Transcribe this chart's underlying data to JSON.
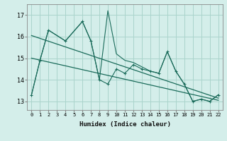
{
  "bg_color": "#d4eeea",
  "grid_color": "#aad4cc",
  "line_color": "#1a6b5a",
  "xlabel": "Humidex (Indice chaleur)",
  "xlim": [
    -0.5,
    22.5
  ],
  "ylim": [
    12.6,
    17.5
  ],
  "yticks": [
    13,
    14,
    15,
    16,
    17
  ],
  "xticks": [
    0,
    1,
    2,
    3,
    4,
    5,
    6,
    7,
    8,
    9,
    10,
    11,
    12,
    13,
    14,
    15,
    16,
    17,
    18,
    19,
    20,
    21,
    22
  ],
  "series1_x": [
    0,
    1,
    2,
    4,
    6,
    7,
    8,
    9,
    10,
    11,
    12,
    13,
    14,
    15,
    16,
    17,
    18,
    19,
    20,
    21,
    22
  ],
  "series1_y": [
    13.3,
    14.9,
    16.3,
    15.8,
    16.7,
    15.8,
    14.0,
    13.8,
    14.5,
    14.3,
    14.7,
    14.5,
    14.4,
    14.3,
    15.3,
    14.4,
    13.8,
    13.0,
    13.1,
    13.0,
    13.3
  ],
  "series2_x": [
    0,
    1,
    2,
    4,
    6,
    7,
    8,
    9,
    10,
    11,
    12,
    13,
    14,
    15,
    16,
    17,
    18,
    19,
    20,
    21,
    22
  ],
  "series2_y": [
    13.3,
    14.9,
    16.3,
    15.8,
    16.7,
    15.8,
    14.0,
    17.2,
    15.2,
    14.9,
    14.8,
    14.6,
    14.4,
    14.3,
    15.3,
    14.4,
    13.8,
    13.0,
    13.1,
    13.0,
    13.3
  ],
  "trend1_x": [
    0,
    22
  ],
  "trend1_y": [
    16.05,
    13.15
  ],
  "trend2_x": [
    0,
    22
  ],
  "trend2_y": [
    15.0,
    13.05
  ]
}
